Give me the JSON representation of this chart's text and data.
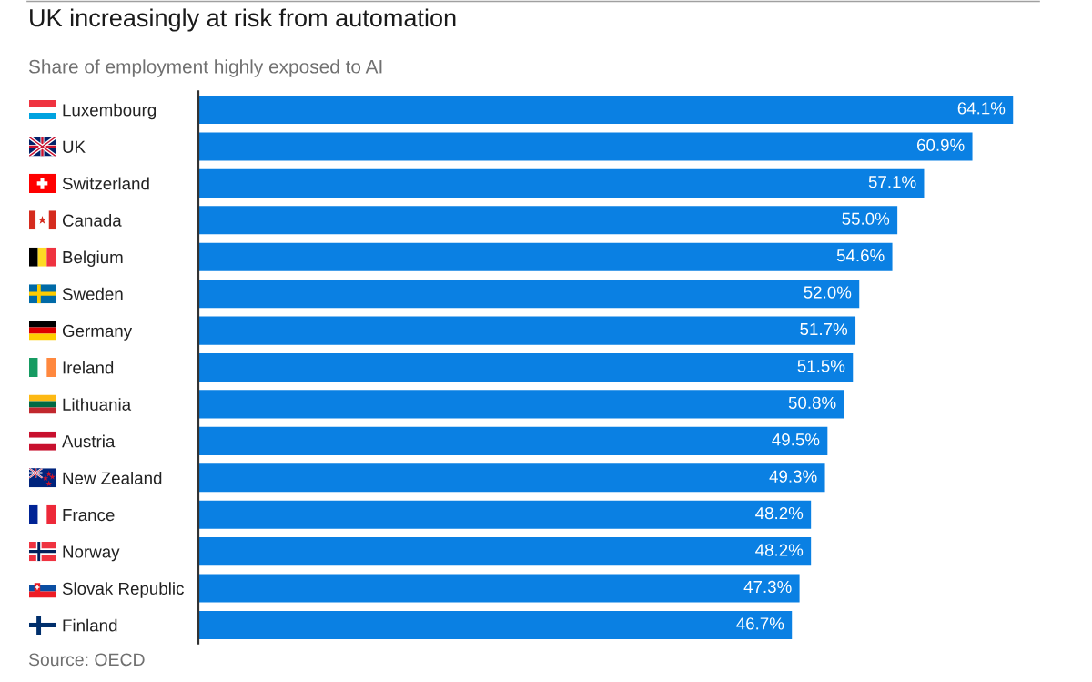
{
  "chart_data": {
    "type": "bar",
    "orientation": "horizontal",
    "title": "UK increasingly at risk from automation",
    "subtitle": "Share of employment highly exposed to AI",
    "categories": [
      "Luxembourg",
      "UK",
      "Switzerland",
      "Canada",
      "Belgium",
      "Sweden",
      "Germany",
      "Ireland",
      "Lithuania",
      "Austria",
      "New Zealand",
      "France",
      "Norway",
      "Slovak Republic",
      "Finland"
    ],
    "values": [
      64.1,
      60.9,
      57.1,
      55.0,
      54.6,
      52.0,
      51.7,
      51.5,
      50.8,
      49.5,
      49.3,
      48.2,
      48.2,
      47.3,
      46.7
    ],
    "value_labels": [
      "64.1%",
      "60.9%",
      "57.1%",
      "55.0%",
      "54.6%",
      "52.0%",
      "51.7%",
      "51.5%",
      "50.8%",
      "49.5%",
      "49.3%",
      "48.2%",
      "48.2%",
      "47.3%",
      "46.7%"
    ],
    "color": "#0a80e3",
    "tick_labels": "y",
    "annotations": [
      "Source: OECD"
    ]
  }
}
